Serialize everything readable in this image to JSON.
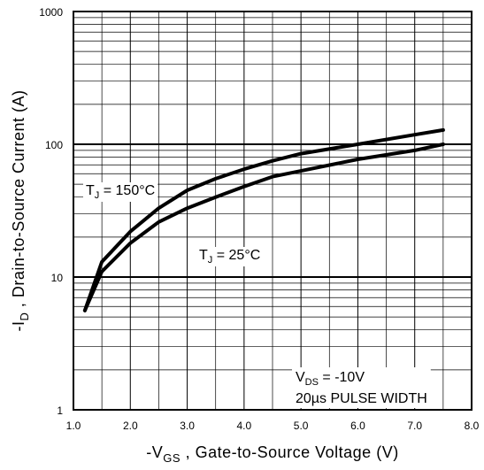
{
  "chart_data": {
    "type": "line",
    "xlabel": {
      "pre": "-V",
      "sub": "GS",
      "post": " , Gate-to-Source Voltage (V)"
    },
    "ylabel": {
      "pre": "-I",
      "sub": "D",
      "post": " , Drain-to-Source Current (A)"
    },
    "xlim": [
      1.0,
      8.0
    ],
    "ylim": [
      1,
      1000
    ],
    "yscale": "log",
    "grid": true,
    "x_ticks": [
      "1.0",
      "2.0",
      "3.0",
      "4.0",
      "5.0",
      "6.0",
      "7.0",
      "8.0"
    ],
    "y_ticks": [
      "1",
      "10",
      "100",
      "1000"
    ],
    "series": [
      {
        "name": "150°C",
        "x": [
          1.2,
          1.5,
          2.0,
          2.5,
          3.0,
          3.5,
          4.0,
          4.5,
          5.0,
          6.0,
          7.0,
          7.5
        ],
        "y": [
          5.6,
          13,
          22,
          33,
          45,
          55,
          65,
          75,
          85,
          100,
          118,
          128
        ]
      },
      {
        "name": "25°C",
        "x": [
          1.2,
          1.5,
          2.0,
          2.5,
          3.0,
          3.5,
          4.0,
          4.5,
          5.0,
          6.0,
          7.0,
          7.5
        ],
        "y": [
          5.6,
          11,
          18,
          26,
          33,
          40,
          48,
          57,
          63,
          77,
          90,
          100
        ]
      }
    ],
    "labels": {
      "tj150": {
        "pre": "T",
        "sub": "J",
        "post": " = 150°C"
      },
      "tj25": {
        "pre": "T",
        "sub": "J",
        "post": " = 25°C"
      },
      "conditions": {
        "vds": {
          "pre": "V",
          "sub": "DS",
          "post": " = -10V"
        },
        "pulse": "20µs PULSE WIDTH"
      }
    },
    "colors": {
      "line": "#000000",
      "grid": "#000000",
      "background": "#ffffff"
    }
  }
}
